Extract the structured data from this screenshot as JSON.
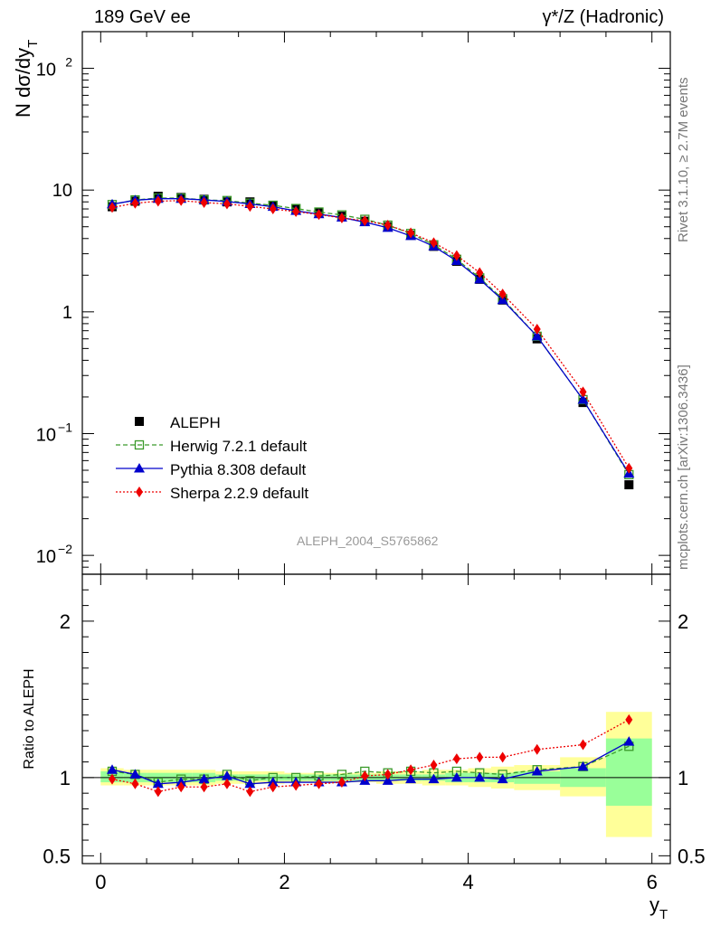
{
  "header": {
    "left": "189 GeV ee",
    "right": "γ*/Z (Hadronic)"
  },
  "side_labels": {
    "rivet": "Rivet 3.1.10, ≥ 2.7M events",
    "mcplots": "mcplots.cern.ch [arXiv:1306.3436]"
  },
  "analysis_tag": "ALEPH_2004_S5765862",
  "chart_data": [
    {
      "type": "scatter",
      "panel": "main",
      "scale": "log-y",
      "ylabel": "N dσ/dy_T",
      "ylim": [
        0.007,
        200
      ],
      "xlim": [
        -0.2,
        6.2
      ],
      "yticks_labels": [
        "10^-2",
        "10^-1",
        "1",
        "10",
        "10^2"
      ],
      "legend_placement": "lower-left",
      "x": [
        0.125,
        0.375,
        0.625,
        0.875,
        1.125,
        1.375,
        1.625,
        1.875,
        2.125,
        2.375,
        2.625,
        2.875,
        3.125,
        3.375,
        3.625,
        3.875,
        4.125,
        4.375,
        4.75,
        5.25,
        5.75
      ],
      "series": [
        {
          "name": "ALEPH",
          "marker": "filled-square",
          "color": "#000000",
          "values": [
            7.3,
            8.1,
            8.9,
            8.7,
            8.4,
            8.0,
            8.0,
            7.5,
            7.0,
            6.5,
            6.1,
            5.55,
            5.0,
            4.25,
            3.45,
            2.6,
            1.85,
            1.25,
            0.6,
            0.18,
            0.038
          ]
        },
        {
          "name": "Herwig 7.2.1 default",
          "marker": "open-square",
          "line": "dashed",
          "color": "#3a9a2a",
          "values": [
            7.6,
            8.3,
            8.6,
            8.6,
            8.3,
            8.2,
            7.8,
            7.5,
            7.05,
            6.6,
            6.25,
            5.75,
            5.15,
            4.4,
            3.55,
            2.7,
            1.9,
            1.28,
            0.63,
            0.19,
            0.046
          ]
        },
        {
          "name": "Pythia 8.308 default",
          "marker": "filled-triangle",
          "line": "solid",
          "color": "#0000cc",
          "values": [
            7.65,
            8.25,
            8.5,
            8.5,
            8.3,
            8.05,
            7.7,
            7.3,
            6.75,
            6.35,
            5.95,
            5.45,
            4.9,
            4.2,
            3.45,
            2.62,
            1.85,
            1.25,
            0.63,
            0.19,
            0.047
          ]
        },
        {
          "name": "Sherpa 2.2.9 default",
          "marker": "filled-diamond",
          "line": "dotted",
          "color": "#ee0000",
          "values": [
            7.2,
            7.8,
            8.1,
            8.2,
            7.9,
            7.7,
            7.35,
            7.0,
            6.65,
            6.3,
            5.9,
            5.6,
            5.15,
            4.45,
            3.7,
            2.9,
            2.1,
            1.4,
            0.72,
            0.22,
            0.052
          ]
        }
      ]
    },
    {
      "type": "scatter",
      "panel": "ratio",
      "ylabel": "Ratio to ALEPH",
      "xlabel": "y_T",
      "ylim": [
        0.45,
        2.3
      ],
      "xlim": [
        -0.2,
        6.2
      ],
      "xticks": [
        0,
        2,
        4,
        6
      ],
      "yticks": [
        0.5,
        1,
        2
      ],
      "x": [
        0.125,
        0.375,
        0.625,
        0.875,
        1.125,
        1.375,
        1.625,
        1.875,
        2.125,
        2.375,
        2.625,
        2.875,
        3.125,
        3.375,
        3.625,
        3.875,
        4.125,
        4.375,
        4.75,
        5.25,
        5.75
      ],
      "bins": [
        [
          0,
          0.25
        ],
        [
          0.25,
          0.5
        ],
        [
          0.5,
          0.75
        ],
        [
          0.75,
          1
        ],
        [
          1,
          1.25
        ],
        [
          1.25,
          1.5
        ],
        [
          1.5,
          1.75
        ],
        [
          1.75,
          2
        ],
        [
          2,
          2.25
        ],
        [
          2.25,
          2.5
        ],
        [
          2.5,
          2.75
        ],
        [
          2.75,
          3
        ],
        [
          3,
          3.25
        ],
        [
          3.25,
          3.5
        ],
        [
          3.5,
          3.75
        ],
        [
          3.75,
          4
        ],
        [
          4,
          4.25
        ],
        [
          4.25,
          4.5
        ],
        [
          4.5,
          5
        ],
        [
          5,
          5.5
        ],
        [
          5.5,
          6
        ]
      ],
      "band_stat": [
        [
          0.97,
          1.04
        ],
        [
          0.97,
          1.03
        ],
        [
          0.97,
          1.03
        ],
        [
          0.97,
          1.03
        ],
        [
          0.97,
          1.03
        ],
        [
          0.98,
          1.02
        ],
        [
          0.98,
          1.02
        ],
        [
          0.98,
          1.02
        ],
        [
          0.98,
          1.02
        ],
        [
          0.98,
          1.02
        ],
        [
          0.98,
          1.02
        ],
        [
          0.98,
          1.02
        ],
        [
          0.98,
          1.02
        ],
        [
          0.98,
          1.02
        ],
        [
          0.98,
          1.02
        ],
        [
          0.97,
          1.03
        ],
        [
          0.97,
          1.03
        ],
        [
          0.97,
          1.03
        ],
        [
          0.96,
          1.04
        ],
        [
          0.94,
          1.06
        ],
        [
          0.82,
          1.25
        ]
      ],
      "band_total": [
        [
          0.95,
          1.06
        ],
        [
          0.95,
          1.05
        ],
        [
          0.95,
          1.05
        ],
        [
          0.95,
          1.05
        ],
        [
          0.95,
          1.05
        ],
        [
          0.96,
          1.04
        ],
        [
          0.96,
          1.04
        ],
        [
          0.96,
          1.04
        ],
        [
          0.97,
          1.03
        ],
        [
          0.97,
          1.03
        ],
        [
          0.97,
          1.03
        ],
        [
          0.97,
          1.03
        ],
        [
          0.96,
          1.04
        ],
        [
          0.96,
          1.04
        ],
        [
          0.95,
          1.05
        ],
        [
          0.95,
          1.05
        ],
        [
          0.94,
          1.06
        ],
        [
          0.93,
          1.07
        ],
        [
          0.92,
          1.08
        ],
        [
          0.88,
          1.13
        ],
        [
          0.62,
          1.42
        ]
      ],
      "series": [
        {
          "name": "Herwig 7.2.1 default",
          "color": "#3a9a2a",
          "values": [
            1.04,
            1.02,
            0.97,
            0.99,
            0.99,
            1.02,
            0.98,
            1.0,
            1.0,
            1.01,
            1.02,
            1.04,
            1.03,
            1.04,
            1.03,
            1.04,
            1.03,
            1.02,
            1.05,
            1.07,
            1.2
          ]
        },
        {
          "name": "Pythia 8.308 default",
          "color": "#0000cc",
          "values": [
            1.05,
            1.02,
            0.96,
            0.97,
            0.99,
            1.01,
            0.96,
            0.97,
            0.97,
            0.97,
            0.97,
            0.98,
            0.98,
            0.99,
            0.99,
            1.0,
            1.0,
            0.99,
            1.04,
            1.07,
            1.23
          ]
        },
        {
          "name": "Sherpa 2.2.9 default",
          "color": "#ee0000",
          "values": [
            0.99,
            0.96,
            0.91,
            0.94,
            0.94,
            0.96,
            0.91,
            0.94,
            0.95,
            0.96,
            0.97,
            1.01,
            1.02,
            1.05,
            1.08,
            1.12,
            1.13,
            1.13,
            1.18,
            1.21,
            1.37
          ]
        }
      ]
    }
  ]
}
